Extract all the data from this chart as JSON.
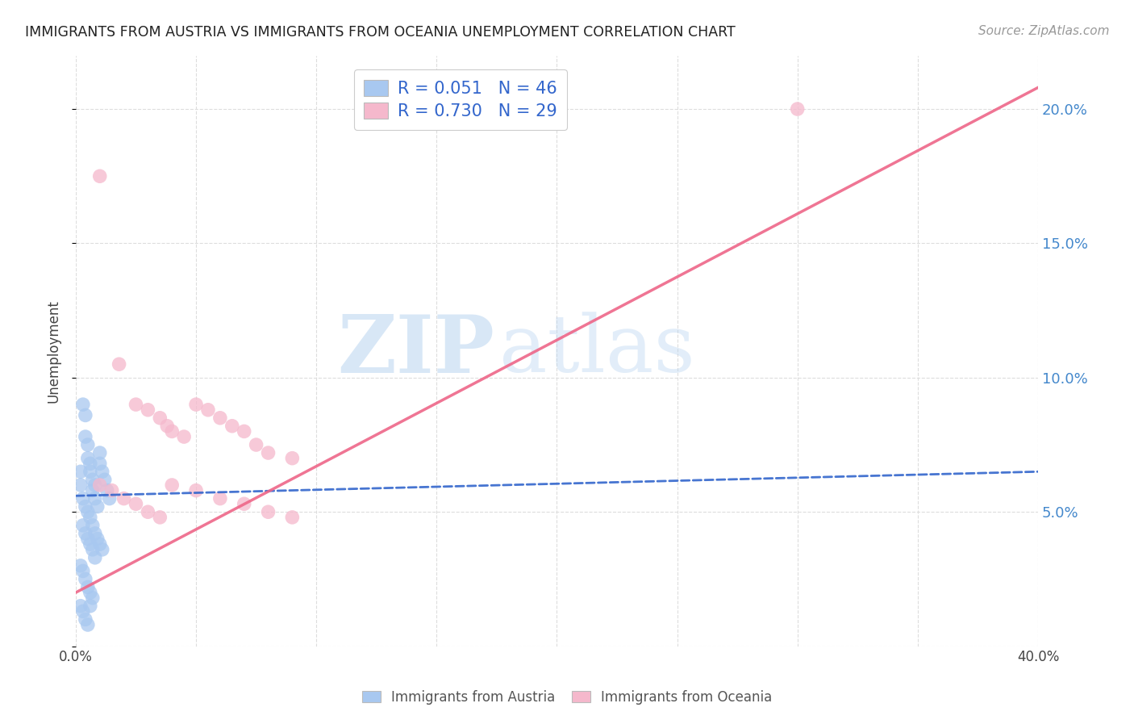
{
  "title": "IMMIGRANTS FROM AUSTRIA VS IMMIGRANTS FROM OCEANIA UNEMPLOYMENT CORRELATION CHART",
  "source": "Source: ZipAtlas.com",
  "ylabel": "Unemployment",
  "xmin": 0.0,
  "xmax": 0.4,
  "ymin": 0.0,
  "ymax": 0.22,
  "watermark_zip": "ZIP",
  "watermark_atlas": "atlas",
  "austria_color": "#a8c8f0",
  "oceania_color": "#f5b8cc",
  "austria_line_color": "#3366cc",
  "oceania_line_color": "#ee6688",
  "austria_scatter": [
    [
      0.002,
      0.065
    ],
    [
      0.003,
      0.09
    ],
    [
      0.004,
      0.086
    ],
    [
      0.004,
      0.078
    ],
    [
      0.005,
      0.075
    ],
    [
      0.005,
      0.07
    ],
    [
      0.006,
      0.068
    ],
    [
      0.006,
      0.065
    ],
    [
      0.007,
      0.062
    ],
    [
      0.007,
      0.058
    ],
    [
      0.008,
      0.06
    ],
    [
      0.008,
      0.055
    ],
    [
      0.009,
      0.052
    ],
    [
      0.01,
      0.072
    ],
    [
      0.01,
      0.068
    ],
    [
      0.011,
      0.065
    ],
    [
      0.012,
      0.062
    ],
    [
      0.013,
      0.058
    ],
    [
      0.014,
      0.055
    ],
    [
      0.003,
      0.055
    ],
    [
      0.004,
      0.052
    ],
    [
      0.005,
      0.05
    ],
    [
      0.006,
      0.048
    ],
    [
      0.007,
      0.045
    ],
    [
      0.008,
      0.042
    ],
    [
      0.009,
      0.04
    ],
    [
      0.01,
      0.038
    ],
    [
      0.011,
      0.036
    ],
    [
      0.003,
      0.045
    ],
    [
      0.004,
      0.042
    ],
    [
      0.005,
      0.04
    ],
    [
      0.006,
      0.038
    ],
    [
      0.007,
      0.036
    ],
    [
      0.008,
      0.033
    ],
    [
      0.002,
      0.03
    ],
    [
      0.003,
      0.028
    ],
    [
      0.004,
      0.025
    ],
    [
      0.005,
      0.022
    ],
    [
      0.006,
      0.02
    ],
    [
      0.007,
      0.018
    ],
    [
      0.002,
      0.015
    ],
    [
      0.003,
      0.013
    ],
    [
      0.004,
      0.01
    ],
    [
      0.005,
      0.008
    ],
    [
      0.006,
      0.015
    ],
    [
      0.002,
      0.06
    ]
  ],
  "oceania_scatter": [
    [
      0.01,
      0.175
    ],
    [
      0.018,
      0.105
    ],
    [
      0.025,
      0.09
    ],
    [
      0.03,
      0.088
    ],
    [
      0.035,
      0.085
    ],
    [
      0.038,
      0.082
    ],
    [
      0.04,
      0.08
    ],
    [
      0.045,
      0.078
    ],
    [
      0.05,
      0.09
    ],
    [
      0.055,
      0.088
    ],
    [
      0.06,
      0.085
    ],
    [
      0.065,
      0.082
    ],
    [
      0.07,
      0.08
    ],
    [
      0.075,
      0.075
    ],
    [
      0.08,
      0.072
    ],
    [
      0.09,
      0.07
    ],
    [
      0.01,
      0.06
    ],
    [
      0.015,
      0.058
    ],
    [
      0.02,
      0.055
    ],
    [
      0.025,
      0.053
    ],
    [
      0.03,
      0.05
    ],
    [
      0.035,
      0.048
    ],
    [
      0.04,
      0.06
    ],
    [
      0.05,
      0.058
    ],
    [
      0.06,
      0.055
    ],
    [
      0.07,
      0.053
    ],
    [
      0.08,
      0.05
    ],
    [
      0.09,
      0.048
    ],
    [
      0.3,
      0.2
    ]
  ],
  "austria_line": {
    "x0": 0.0,
    "y0": 0.056,
    "x1": 0.4,
    "y1": 0.065
  },
  "oceania_line": {
    "x0": 0.0,
    "y0": 0.02,
    "x1": 0.4,
    "y1": 0.208
  },
  "background_color": "#ffffff",
  "grid_color": "#dddddd"
}
